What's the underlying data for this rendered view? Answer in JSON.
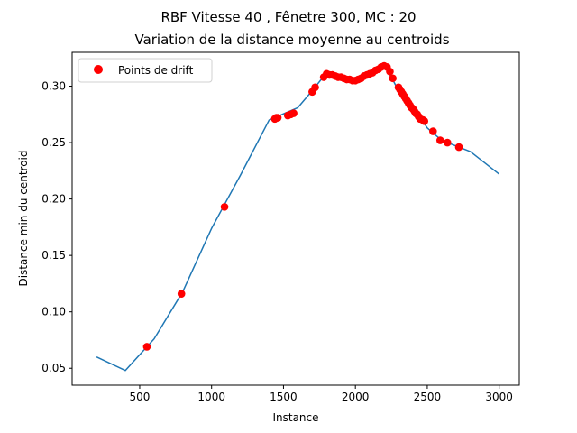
{
  "chart_data": {
    "type": "line",
    "title": "RBF Vitesse 40 , Fênetre 300, MC : 20",
    "subtitle": "Variation de la distance moyenne au centroids",
    "xlabel": "Instance",
    "ylabel": "Distance min du centroid",
    "xlim": [
      30,
      3140
    ],
    "ylim": [
      0.035,
      0.33
    ],
    "x_ticks": [
      500,
      1000,
      1500,
      2000,
      2500,
      3000
    ],
    "x_tick_labels": [
      "500",
      "1000",
      "1500",
      "2000",
      "2500",
      "3000"
    ],
    "y_ticks": [
      0.05,
      0.1,
      0.15,
      0.2,
      0.25,
      0.3
    ],
    "y_tick_labels": [
      "0.05",
      "0.10",
      "0.15",
      "0.20",
      "0.25",
      "0.30"
    ],
    "grid": false,
    "legend": {
      "placement": "top-left",
      "entries": [
        "Points de drift"
      ]
    },
    "colors": {
      "line": "#1f77b4",
      "points": "#ff0000"
    },
    "series": [
      {
        "kind": "line",
        "x": [
          200,
          400,
          600,
          800,
          1000,
          1200,
          1400,
          1600,
          1700,
          1800,
          1900,
          2000,
          2100,
          2200,
          2250,
          2300,
          2400,
          2500,
          2600,
          2700,
          2800,
          3000
        ],
        "y": [
          0.06,
          0.048,
          0.076,
          0.118,
          0.174,
          0.221,
          0.27,
          0.281,
          0.296,
          0.312,
          0.308,
          0.305,
          0.311,
          0.318,
          0.308,
          0.296,
          0.282,
          0.263,
          0.252,
          0.247,
          0.242,
          0.222
        ]
      },
      {
        "name": "Points de drift",
        "kind": "scatter",
        "x": [
          550,
          790,
          1090,
          1440,
          1450,
          1460,
          1530,
          1550,
          1570,
          1700,
          1720,
          1780,
          1800,
          1820,
          1840,
          1860,
          1880,
          1900,
          1920,
          1940,
          1960,
          1980,
          2000,
          2020,
          2040,
          2060,
          2080,
          2100,
          2120,
          2140,
          2160,
          2180,
          2200,
          2220,
          2240,
          2260,
          2300,
          2310,
          2320,
          2330,
          2340,
          2350,
          2360,
          2370,
          2380,
          2390,
          2400,
          2410,
          2420,
          2430,
          2440,
          2450,
          2470,
          2480,
          2540,
          2590,
          2640,
          2720
        ],
        "y": [
          0.069,
          0.116,
          0.193,
          0.271,
          0.272,
          0.272,
          0.274,
          0.275,
          0.276,
          0.295,
          0.299,
          0.308,
          0.311,
          0.31,
          0.31,
          0.309,
          0.308,
          0.308,
          0.307,
          0.306,
          0.306,
          0.305,
          0.305,
          0.306,
          0.307,
          0.309,
          0.31,
          0.311,
          0.312,
          0.314,
          0.315,
          0.317,
          0.318,
          0.317,
          0.313,
          0.307,
          0.299,
          0.297,
          0.295,
          0.293,
          0.291,
          0.289,
          0.287,
          0.285,
          0.283,
          0.281,
          0.28,
          0.278,
          0.276,
          0.275,
          0.273,
          0.271,
          0.27,
          0.269,
          0.26,
          0.252,
          0.25,
          0.246
        ]
      }
    ]
  }
}
